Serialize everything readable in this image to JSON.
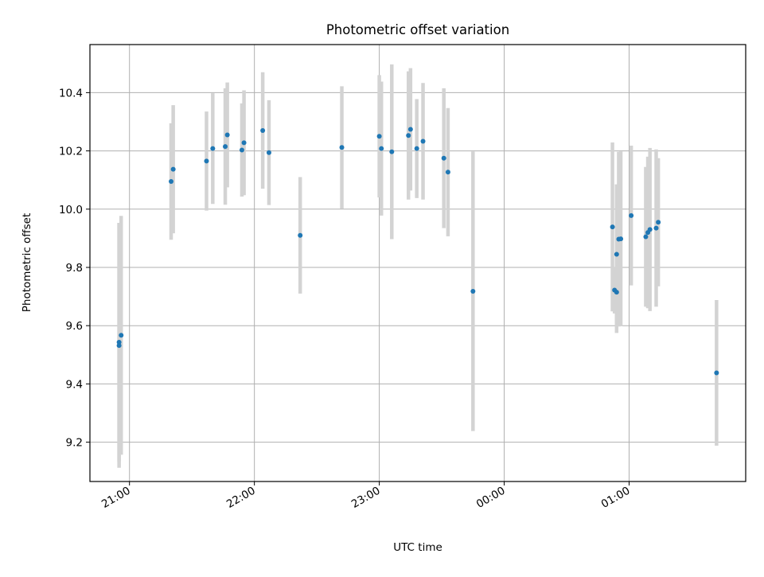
{
  "chart_data": {
    "type": "scatter",
    "title": "Photometric offset variation",
    "xlabel": "UTC time",
    "ylabel": "Photometric offset",
    "x_ticks": [
      "21:00",
      "22:00",
      "23:00",
      "00:00",
      "01:00"
    ],
    "y_ticks": [
      "9.2",
      "9.4",
      "9.6",
      "9.8",
      "10.0",
      "10.2",
      "10.4"
    ],
    "y_tick_values": [
      9.2,
      9.4,
      9.6,
      9.8,
      10.0,
      10.2,
      10.4
    ],
    "xlim": [
      "20:41",
      "25:56"
    ],
    "ylim": [
      9.065,
      10.565
    ],
    "grid": true,
    "x_tick_labels_rotated": true,
    "colors": {
      "marker": "#1f77b4",
      "errorbar": "#d3d3d3",
      "grid": "#b0b0b0"
    },
    "points": [
      {
        "x": "20:55",
        "y": 9.543,
        "err": 0.41
      },
      {
        "x": "20:55",
        "y": 9.532,
        "err": 0.42
      },
      {
        "x": "20:56",
        "y": 9.567,
        "err": 0.41
      },
      {
        "x": "21:20",
        "y": 10.095,
        "err": 0.2
      },
      {
        "x": "21:21",
        "y": 10.137,
        "err": 0.22
      },
      {
        "x": "21:37",
        "y": 10.165,
        "err": 0.17
      },
      {
        "x": "21:40",
        "y": 10.208,
        "err": 0.19
      },
      {
        "x": "21:46",
        "y": 10.215,
        "err": 0.2
      },
      {
        "x": "21:47",
        "y": 10.255,
        "err": 0.18
      },
      {
        "x": "21:54",
        "y": 10.203,
        "err": 0.16
      },
      {
        "x": "21:55",
        "y": 10.228,
        "err": 0.18
      },
      {
        "x": "22:04",
        "y": 10.27,
        "err": 0.2
      },
      {
        "x": "22:07",
        "y": 10.194,
        "err": 0.18
      },
      {
        "x": "22:22",
        "y": 9.91,
        "err": 0.2
      },
      {
        "x": "22:42",
        "y": 10.212,
        "err": 0.21
      },
      {
        "x": "23:00",
        "y": 10.25,
        "err": 0.21
      },
      {
        "x": "23:01",
        "y": 10.208,
        "err": 0.23
      },
      {
        "x": "23:06",
        "y": 10.197,
        "err": 0.3
      },
      {
        "x": "23:14",
        "y": 10.253,
        "err": 0.22
      },
      {
        "x": "23:15",
        "y": 10.274,
        "err": 0.21
      },
      {
        "x": "23:18",
        "y": 10.208,
        "err": 0.17
      },
      {
        "x": "23:21",
        "y": 10.233,
        "err": 0.2
      },
      {
        "x": "23:31",
        "y": 10.175,
        "err": 0.24
      },
      {
        "x": "23:33",
        "y": 10.127,
        "err": 0.22
      },
      {
        "x": "23:45",
        "y": 9.718,
        "err": 0.48
      },
      {
        "x": "24:52",
        "y": 9.939,
        "err": 0.29
      },
      {
        "x": "24:53",
        "y": 9.722,
        "err": 0.08
      },
      {
        "x": "24:54",
        "y": 9.845,
        "err": 0.24
      },
      {
        "x": "24:54",
        "y": 9.715,
        "err": 0.14
      },
      {
        "x": "24:55",
        "y": 9.897,
        "err": 0.3
      },
      {
        "x": "24:56",
        "y": 9.898,
        "err": 0.3
      },
      {
        "x": "25:01",
        "y": 9.978,
        "err": 0.24
      },
      {
        "x": "25:08",
        "y": 9.905,
        "err": 0.24
      },
      {
        "x": "25:09",
        "y": 9.92,
        "err": 0.26
      },
      {
        "x": "25:10",
        "y": 9.93,
        "err": 0.28
      },
      {
        "x": "25:13",
        "y": 9.935,
        "err": 0.27
      },
      {
        "x": "25:14",
        "y": 9.955,
        "err": 0.22
      },
      {
        "x": "25:42",
        "y": 9.438,
        "err": 0.25
      }
    ]
  }
}
